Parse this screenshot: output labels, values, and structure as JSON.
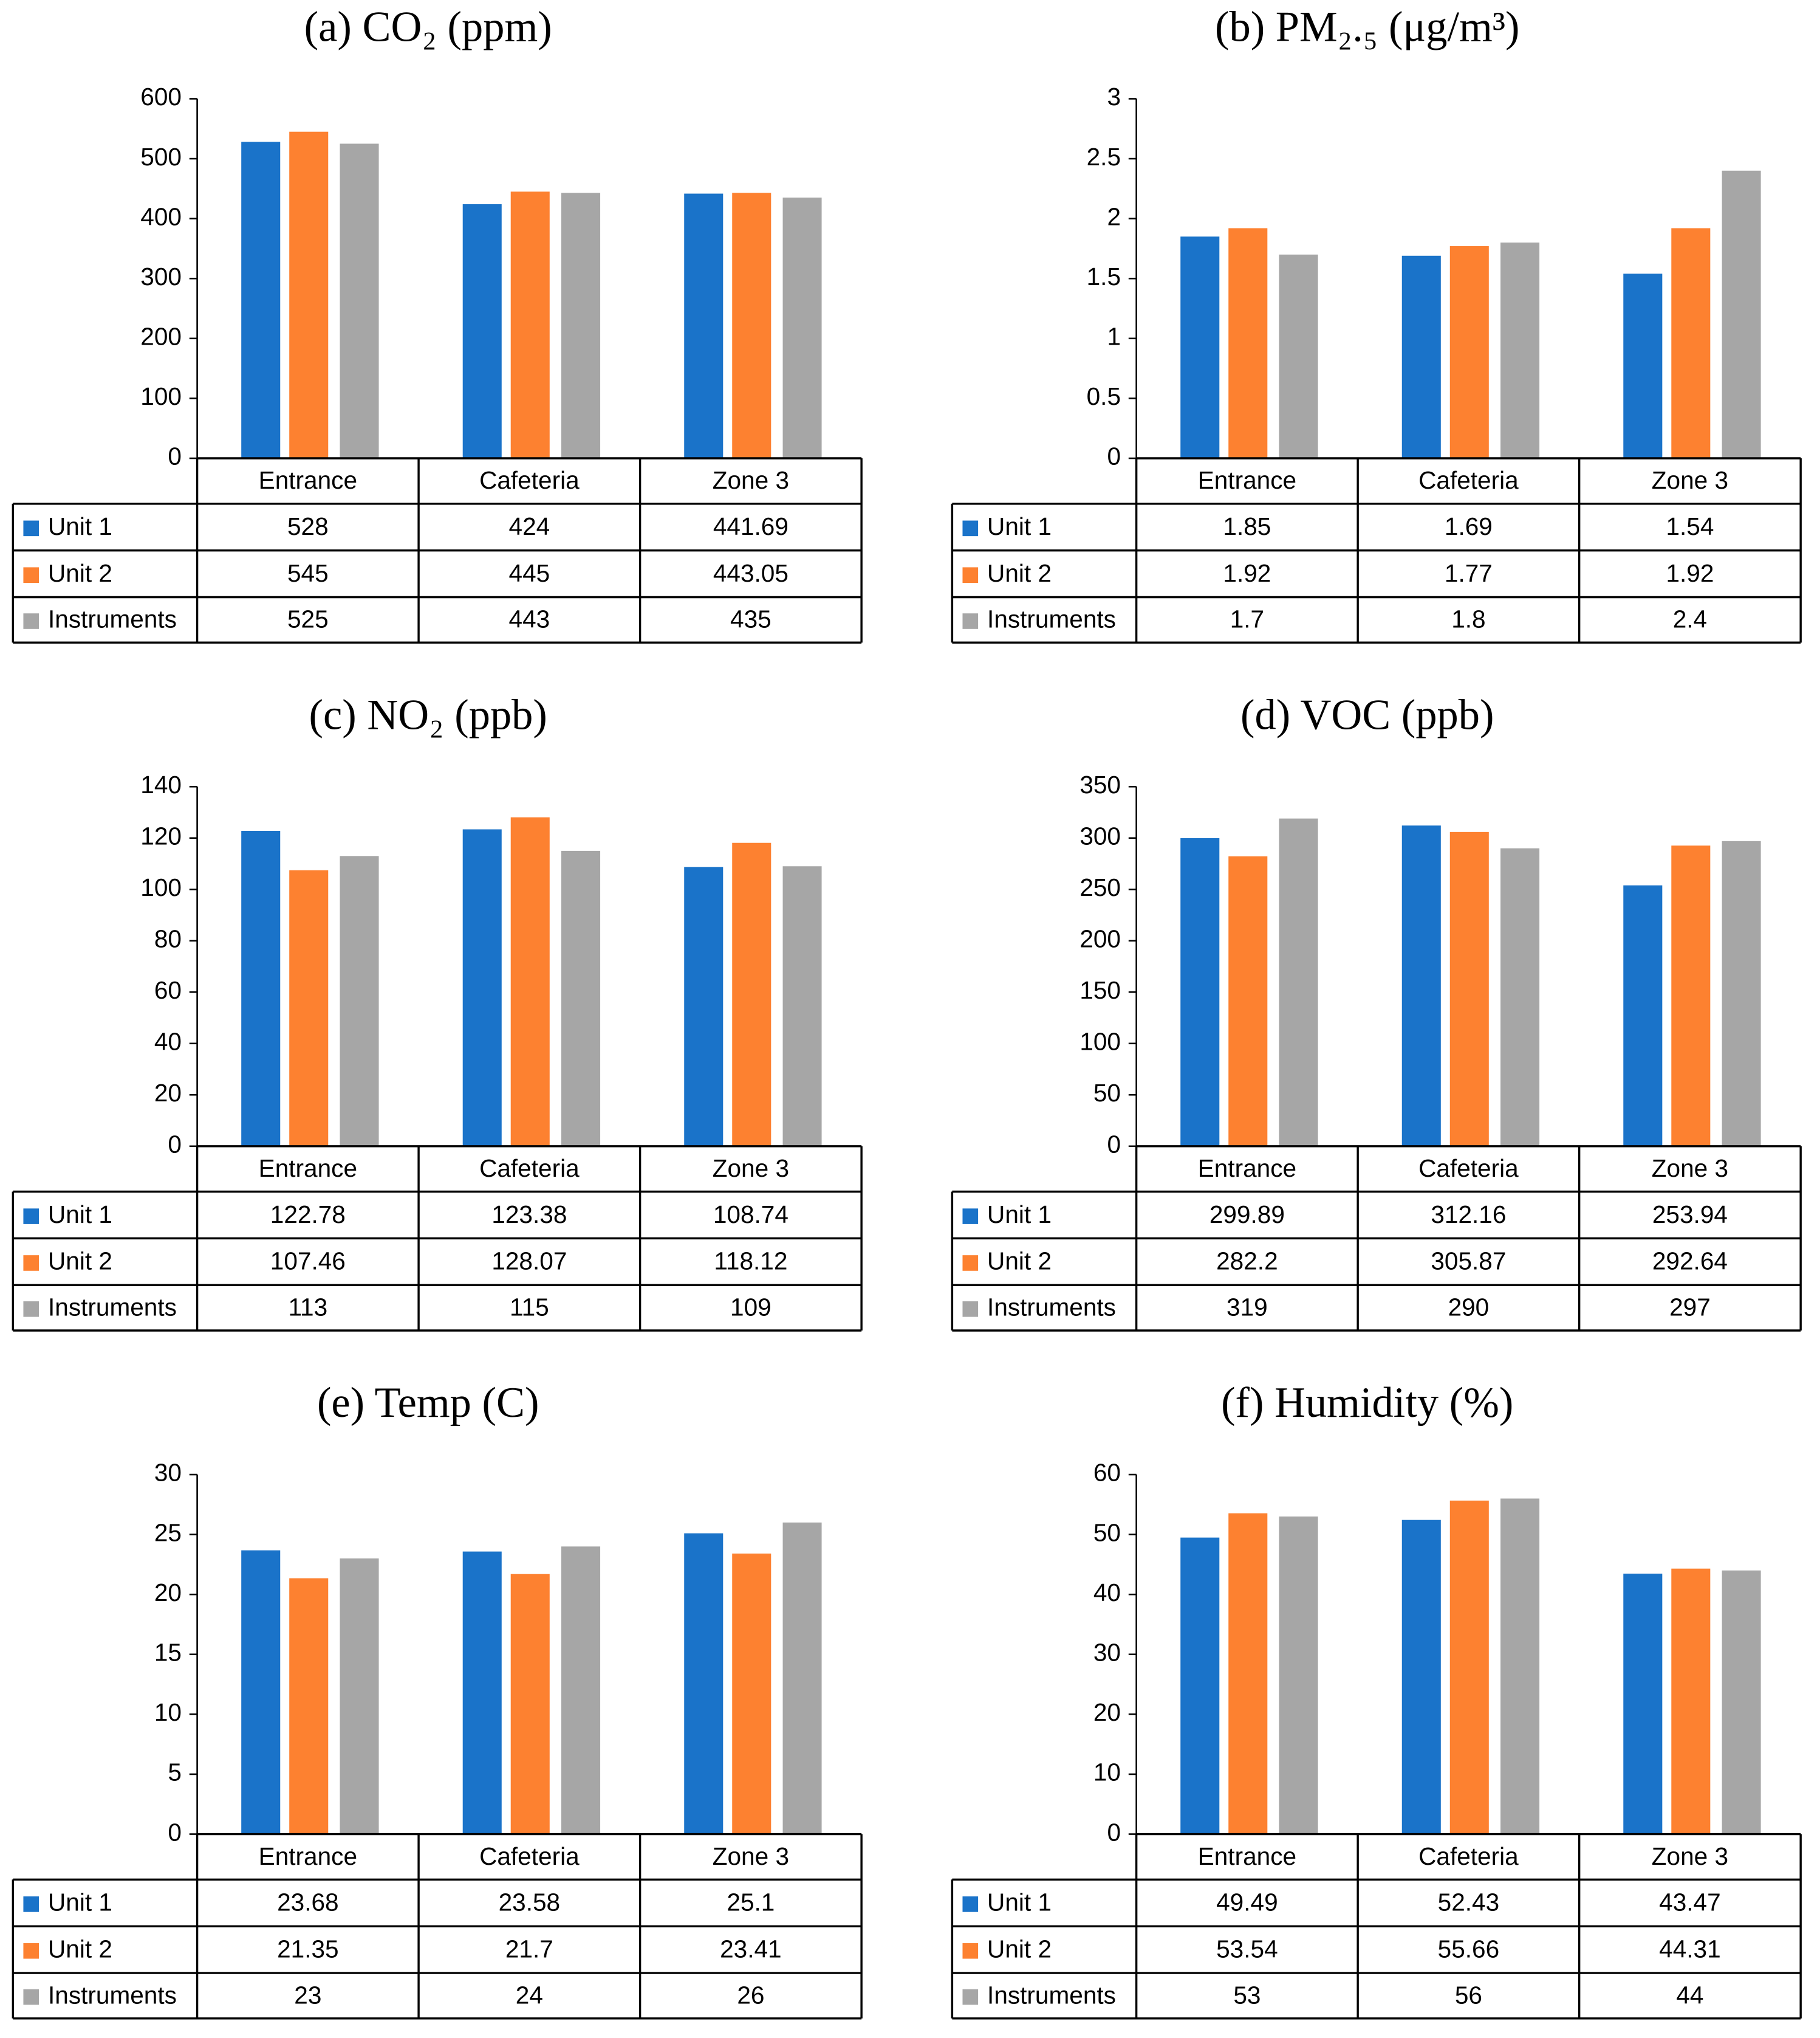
{
  "chart_data": [
    {
      "type": "bar",
      "title": "(a) CO₂ (ppm)",
      "categories": [
        "Entrance",
        "Cafeteria",
        "Zone 3"
      ],
      "series": [
        {
          "name": "Unit 1",
          "color": "#1a73c9",
          "values": [
            528,
            424,
            441.69
          ]
        },
        {
          "name": "Unit 2",
          "color": "#fd8130",
          "values": [
            545,
            445,
            443.05
          ]
        },
        {
          "name": "Instruments",
          "color": "#a6a6a6",
          "values": [
            525,
            443,
            435
          ]
        }
      ],
      "ylim": [
        0,
        600
      ],
      "yticks": [
        0,
        100,
        200,
        300,
        400,
        500,
        600
      ],
      "grid": false
    },
    {
      "type": "bar",
      "title": "(b) PM₂.₅ (μg/m³)",
      "categories": [
        "Entrance",
        "Cafeteria",
        "Zone 3"
      ],
      "series": [
        {
          "name": "Unit 1",
          "color": "#1a73c9",
          "values": [
            1.85,
            1.69,
            1.54
          ]
        },
        {
          "name": "Unit 2",
          "color": "#fd8130",
          "values": [
            1.92,
            1.77,
            1.92
          ]
        },
        {
          "name": "Instruments",
          "color": "#a6a6a6",
          "values": [
            1.7,
            1.8,
            2.4
          ]
        }
      ],
      "ylim": [
        0,
        3
      ],
      "yticks": [
        0,
        0.5,
        1,
        1.5,
        2,
        2.5,
        3
      ],
      "grid": false
    },
    {
      "type": "bar",
      "title": "(c) NO₂ (ppb)",
      "categories": [
        "Entrance",
        "Cafeteria",
        "Zone 3"
      ],
      "series": [
        {
          "name": "Unit 1",
          "color": "#1a73c9",
          "values": [
            122.78,
            123.38,
            108.74
          ]
        },
        {
          "name": "Unit 2",
          "color": "#fd8130",
          "values": [
            107.46,
            128.07,
            118.12
          ]
        },
        {
          "name": "Instruments",
          "color": "#a6a6a6",
          "values": [
            113,
            115,
            109
          ]
        }
      ],
      "ylim": [
        0,
        140
      ],
      "yticks": [
        0,
        20,
        40,
        60,
        80,
        100,
        120,
        140
      ],
      "grid": false
    },
    {
      "type": "bar",
      "title": "(d) VOC (ppb)",
      "categories": [
        "Entrance",
        "Cafeteria",
        "Zone 3"
      ],
      "series": [
        {
          "name": "Unit 1",
          "color": "#1a73c9",
          "values": [
            299.89,
            312.16,
            253.94
          ]
        },
        {
          "name": "Unit 2",
          "color": "#fd8130",
          "values": [
            282.2,
            305.87,
            292.64
          ]
        },
        {
          "name": "Instruments",
          "color": "#a6a6a6",
          "values": [
            319,
            290,
            297
          ]
        }
      ],
      "ylim": [
        0,
        350
      ],
      "yticks": [
        0,
        50,
        100,
        150,
        200,
        250,
        300,
        350
      ],
      "grid": false
    },
    {
      "type": "bar",
      "title": "(e) Temp (C)",
      "categories": [
        "Entrance",
        "Cafeteria",
        "Zone 3"
      ],
      "series": [
        {
          "name": "Unit 1",
          "color": "#1a73c9",
          "values": [
            23.68,
            23.58,
            25.1
          ]
        },
        {
          "name": "Unit 2",
          "color": "#fd8130",
          "values": [
            21.35,
            21.7,
            23.41
          ]
        },
        {
          "name": "Instruments",
          "color": "#a6a6a6",
          "values": [
            23,
            24,
            26
          ]
        }
      ],
      "ylim": [
        0,
        30
      ],
      "yticks": [
        0,
        5,
        10,
        15,
        20,
        25,
        30
      ],
      "grid": false
    },
    {
      "type": "bar",
      "title": "(f) Humidity (%)",
      "categories": [
        "Entrance",
        "Cafeteria",
        "Zone 3"
      ],
      "series": [
        {
          "name": "Unit 1",
          "color": "#1a73c9",
          "values": [
            49.49,
            52.43,
            43.47
          ]
        },
        {
          "name": "Unit 2",
          "color": "#fd8130",
          "values": [
            53.54,
            55.66,
            44.31
          ]
        },
        {
          "name": "Instruments",
          "color": "#a6a6a6",
          "values": [
            53,
            56,
            44
          ]
        }
      ],
      "ylim": [
        0,
        60
      ],
      "yticks": [
        0,
        10,
        20,
        30,
        40,
        50,
        60
      ],
      "grid": false
    }
  ]
}
